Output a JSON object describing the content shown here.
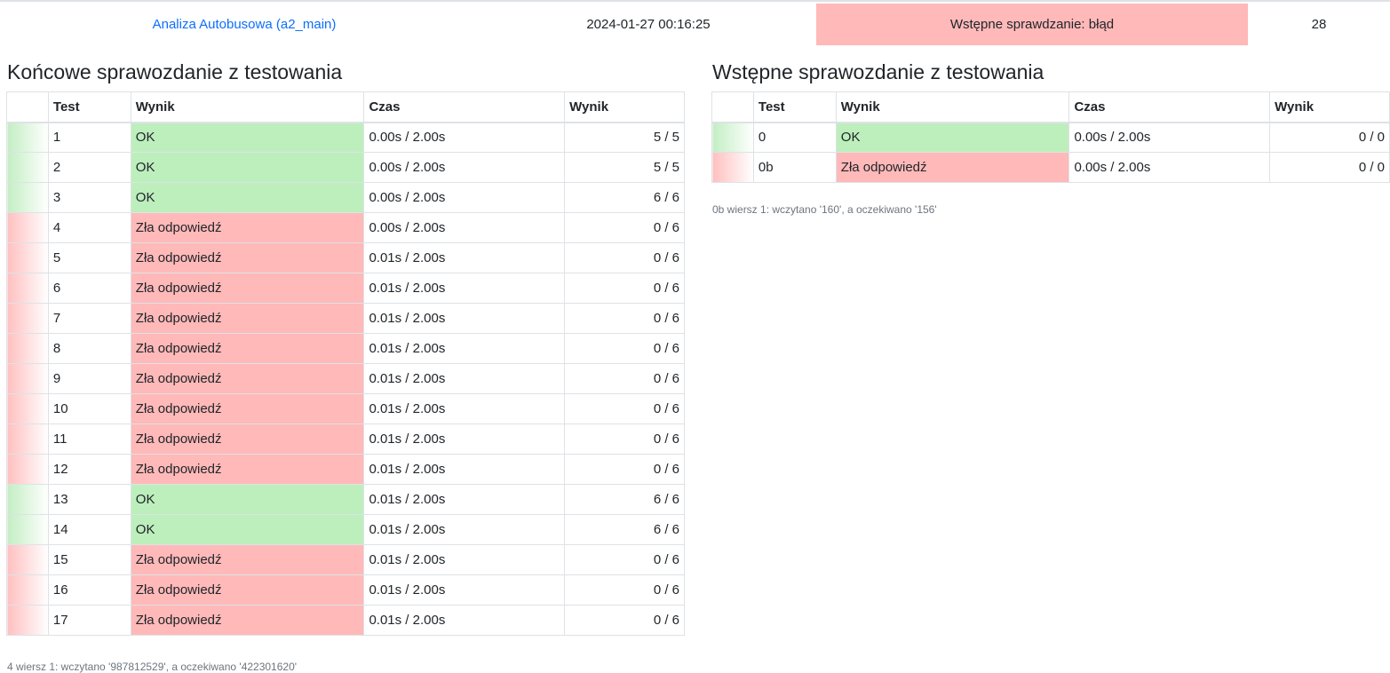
{
  "submission": {
    "problem_name": "Analiza Autobusowa (a2_main)",
    "date": "2024-01-27 00:16:25",
    "status": "Wstępne sprawdzanie: błąd",
    "score": "28"
  },
  "colors": {
    "ok": "#bdefbd",
    "error": "#ffb9b9",
    "link": "#0d6efd"
  },
  "headers": {
    "test": "Test",
    "result": "Wynik",
    "time": "Czas",
    "score": "Wynik"
  },
  "final_report": {
    "title": "Końcowe sprawozdanie z testowania",
    "rows": [
      {
        "test": "1",
        "result": "OK",
        "status": "ok",
        "time": "0.00s / 2.00s",
        "score": "5 / 5"
      },
      {
        "test": "2",
        "result": "OK",
        "status": "ok",
        "time": "0.00s / 2.00s",
        "score": "5 / 5"
      },
      {
        "test": "3",
        "result": "OK",
        "status": "ok",
        "time": "0.00s / 2.00s",
        "score": "6 / 6"
      },
      {
        "test": "4",
        "result": "Zła odpowiedź",
        "status": "bad",
        "time": "0.00s / 2.00s",
        "score": "0 / 6"
      },
      {
        "test": "5",
        "result": "Zła odpowiedź",
        "status": "bad",
        "time": "0.01s / 2.00s",
        "score": "0 / 6"
      },
      {
        "test": "6",
        "result": "Zła odpowiedź",
        "status": "bad",
        "time": "0.01s / 2.00s",
        "score": "0 / 6"
      },
      {
        "test": "7",
        "result": "Zła odpowiedź",
        "status": "bad",
        "time": "0.01s / 2.00s",
        "score": "0 / 6"
      },
      {
        "test": "8",
        "result": "Zła odpowiedź",
        "status": "bad",
        "time": "0.01s / 2.00s",
        "score": "0 / 6"
      },
      {
        "test": "9",
        "result": "Zła odpowiedź",
        "status": "bad",
        "time": "0.01s / 2.00s",
        "score": "0 / 6"
      },
      {
        "test": "10",
        "result": "Zła odpowiedź",
        "status": "bad",
        "time": "0.01s / 2.00s",
        "score": "0 / 6"
      },
      {
        "test": "11",
        "result": "Zła odpowiedź",
        "status": "bad",
        "time": "0.01s / 2.00s",
        "score": "0 / 6"
      },
      {
        "test": "12",
        "result": "Zła odpowiedź",
        "status": "bad",
        "time": "0.01s / 2.00s",
        "score": "0 / 6"
      },
      {
        "test": "13",
        "result": "OK",
        "status": "ok",
        "time": "0.01s / 2.00s",
        "score": "6 / 6"
      },
      {
        "test": "14",
        "result": "OK",
        "status": "ok",
        "time": "0.01s / 2.00s",
        "score": "6 / 6"
      },
      {
        "test": "15",
        "result": "Zła odpowiedź",
        "status": "bad",
        "time": "0.01s / 2.00s",
        "score": "0 / 6"
      },
      {
        "test": "16",
        "result": "Zła odpowiedź",
        "status": "bad",
        "time": "0.01s / 2.00s",
        "score": "0 / 6"
      },
      {
        "test": "17",
        "result": "Zła odpowiedź",
        "status": "bad",
        "time": "0.01s / 2.00s",
        "score": "0 / 6"
      }
    ],
    "note": "4 wiersz 1: wczytano '987812529', a oczekiwano '422301620'"
  },
  "initial_report": {
    "title": "Wstępne sprawozdanie z testowania",
    "rows": [
      {
        "test": "0",
        "result": "OK",
        "status": "ok",
        "time": "0.00s / 2.00s",
        "score": "0 / 0"
      },
      {
        "test": "0b",
        "result": "Zła odpowiedź",
        "status": "bad",
        "time": "0.00s / 2.00s",
        "score": "0 / 0"
      }
    ],
    "note": "0b wiersz 1: wczytano '160', a oczekiwano '156'"
  }
}
